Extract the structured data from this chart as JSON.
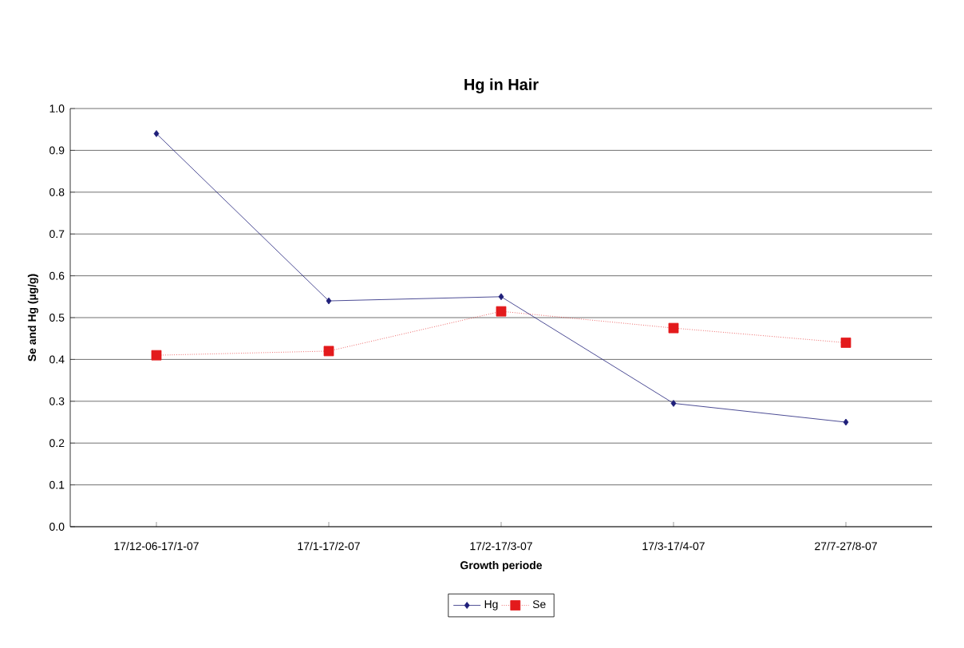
{
  "chart_data": {
    "type": "line",
    "title": "Hg in Hair",
    "xlabel": "Growth periode",
    "ylabel": "Se and Hg (µg/g)",
    "categories": [
      "17/12-06-17/1-07",
      "17/1-17/2-07",
      "17/2-17/3-07",
      "17/3-17/4-07",
      "27/7-27/8-07"
    ],
    "series": [
      {
        "name": "Hg",
        "color": "#1f1f7a",
        "marker": "diamond",
        "line_style": "solid",
        "values": [
          0.94,
          0.54,
          0.55,
          0.295,
          0.25
        ]
      },
      {
        "name": "Se",
        "color": "#e31a1c",
        "marker": "square",
        "line_style": "dotted",
        "values": [
          0.41,
          0.42,
          0.515,
          0.475,
          0.44
        ]
      }
    ],
    "ylim": [
      0,
      1.0
    ],
    "yticks": [
      {
        "value": 0,
        "label": "0.0"
      },
      0.1,
      0.2,
      0.3,
      0.4,
      0.5,
      0.6,
      0.7,
      0.8,
      0.9,
      {
        "value": 1,
        "label": "1.0"
      }
    ],
    "grid": "y",
    "legend": "bottom"
  }
}
